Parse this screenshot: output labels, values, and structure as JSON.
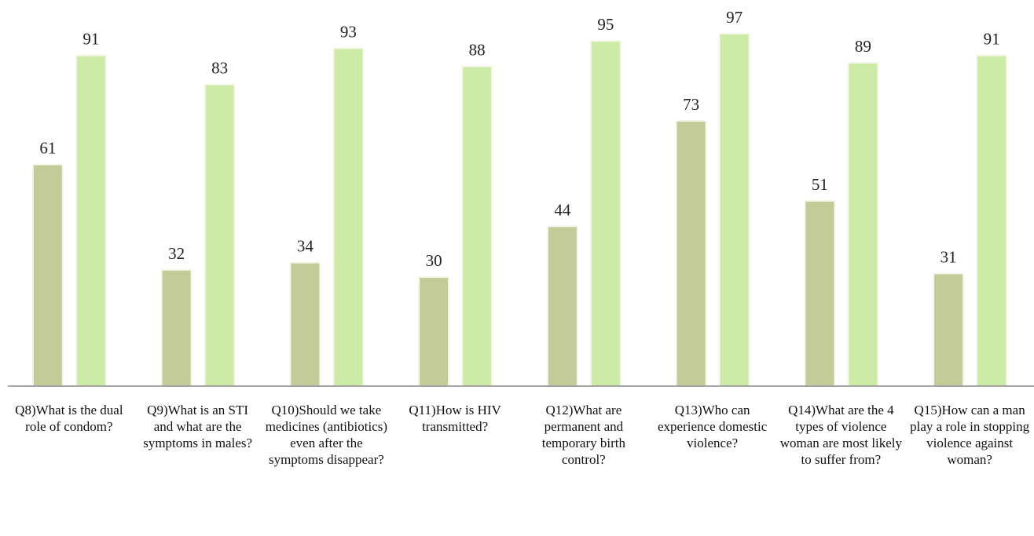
{
  "chart_data": {
    "type": "bar",
    "categories": [
      "Q8)What is the dual role of condom?",
      "Q9)What is an STI and what are the symptoms in males?",
      "Q10)Should we take medicines (antibiotics) even after the symptoms disappear?",
      "Q11)How is HIV transmitted?",
      "Q12)What are permanent and temporary birth control?",
      "Q13)Who can experience domestic violence?",
      "Q14)What are the 4 types of violence woman are most likely to suffer from?",
      "Q15)How can a man play a role in stopping violence against woman?"
    ],
    "series": [
      {
        "color": "#c3cc98",
        "values": [
          61,
          32,
          34,
          30,
          44,
          73,
          51,
          31
        ]
      },
      {
        "color": "#cdeba6",
        "values": [
          91,
          83,
          93,
          88,
          95,
          97,
          89,
          91
        ]
      }
    ],
    "ylim": [
      0,
      100
    ]
  }
}
